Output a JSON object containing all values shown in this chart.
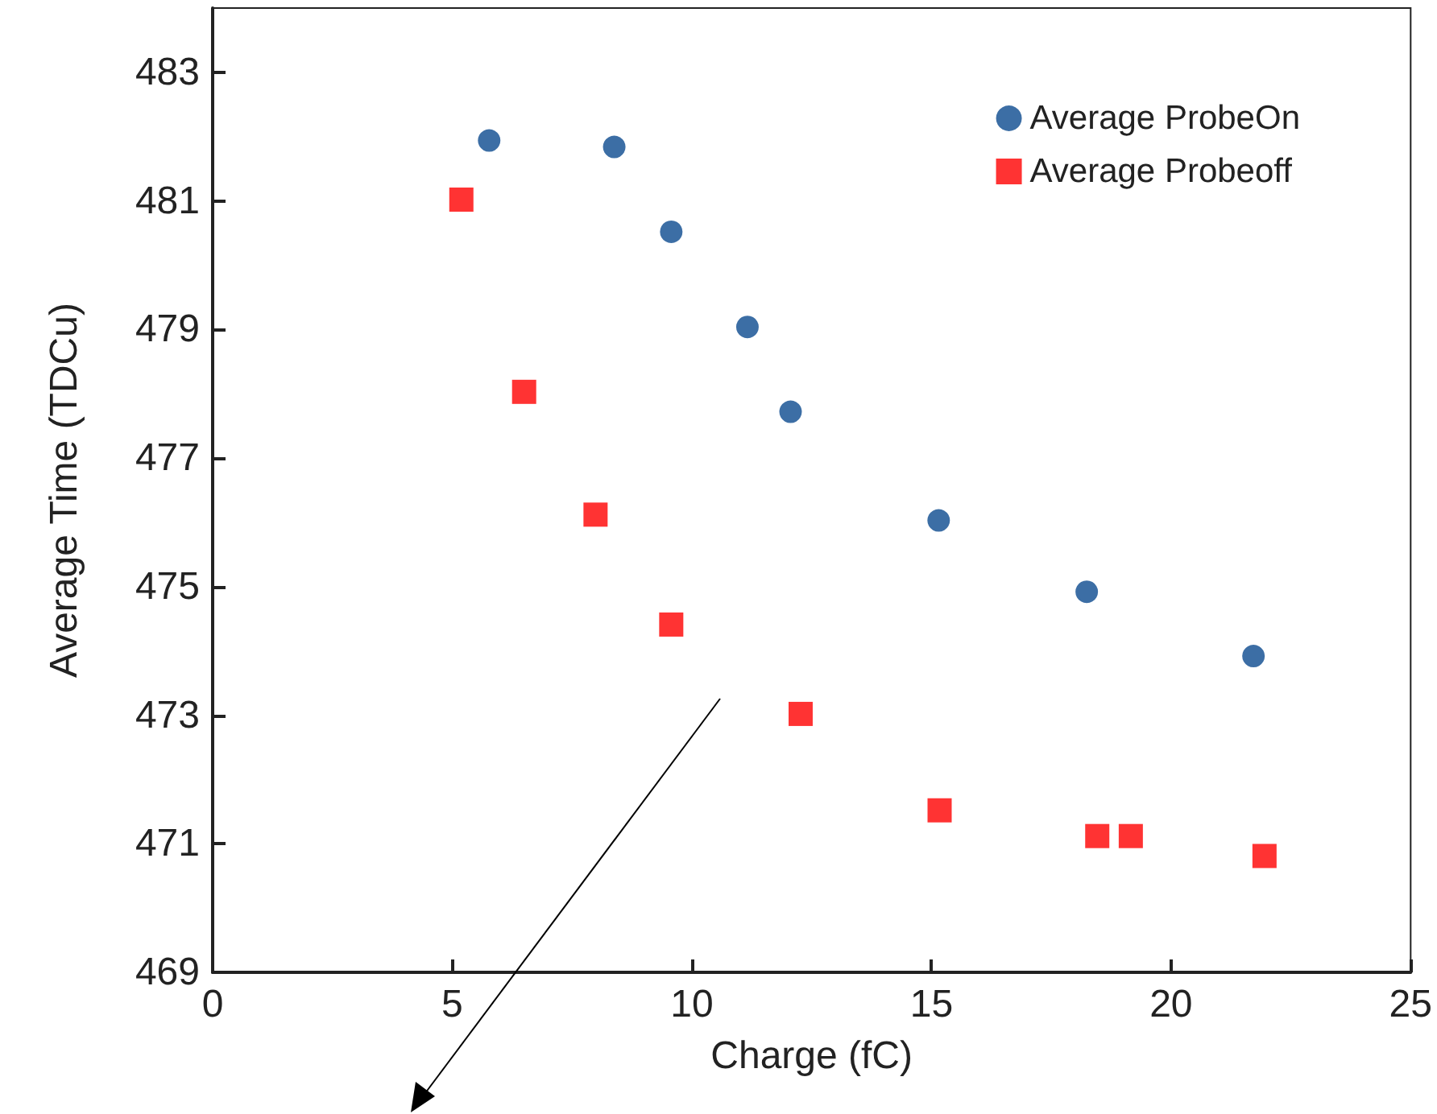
{
  "chart_data": {
    "type": "scatter",
    "xlabel": "Charge (fC)",
    "ylabel": "Average Time (TDCu)",
    "xlim": [
      0,
      25
    ],
    "xticks": [
      0,
      5,
      10,
      15,
      20,
      25
    ],
    "ylim": [
      469,
      484
    ],
    "yticks": [
      469,
      471,
      473,
      475,
      477,
      479,
      481,
      483
    ],
    "grid": false,
    "legend": "top right",
    "series": [
      {
        "name": "Average ProbeOn",
        "color": "#0b4a8f",
        "marker": "circle",
        "x": [
          5.77,
          8.38,
          9.57,
          11.16,
          12.06,
          15.15,
          18.24,
          21.72
        ],
        "values": [
          481.94,
          481.84,
          480.52,
          479.04,
          477.72,
          476.03,
          474.92,
          473.92
        ]
      },
      {
        "name": "Average Probeoff",
        "color": "#ff0000",
        "marker": "square",
        "x": [
          5.19,
          6.5,
          7.99,
          9.57,
          12.27,
          15.17,
          18.46,
          19.16,
          21.95
        ],
        "values": [
          481.02,
          478.03,
          476.12,
          474.41,
          473.02,
          471.52,
          471.12,
          471.12,
          470.81
        ]
      }
    ]
  }
}
